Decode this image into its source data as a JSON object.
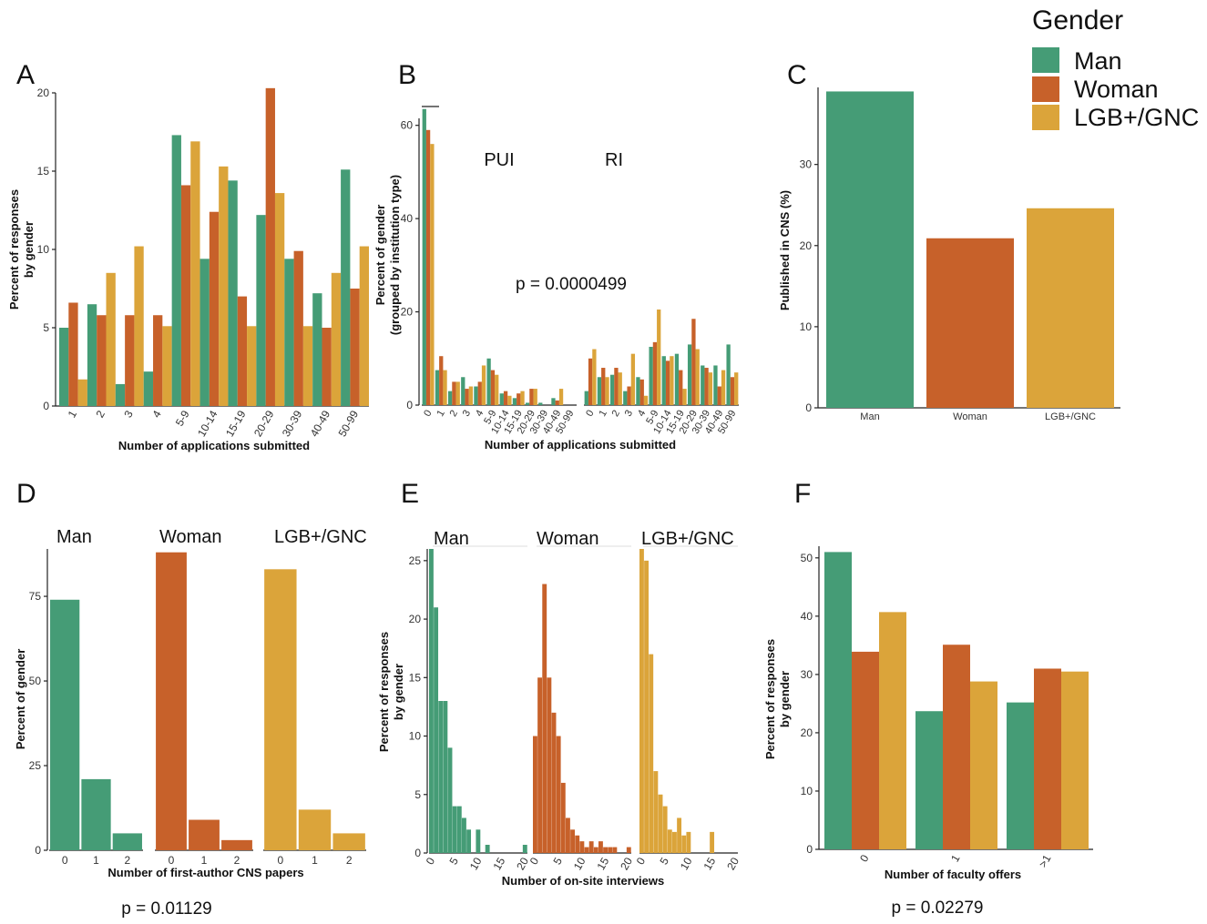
{
  "colors": {
    "man": "#459c76",
    "woman": "#c7612a",
    "lgb": "#dba43a"
  },
  "legend": {
    "title": "Gender",
    "entries": [
      {
        "label": "Man",
        "color": "#459c76"
      },
      {
        "label": "Woman",
        "color": "#c7612a"
      },
      {
        "label": "LGB+/GNC",
        "color": "#dba43a"
      }
    ]
  },
  "chart_data": [
    {
      "panel": "A",
      "type": "bar",
      "xlabel": "Number of applications submitted",
      "ylabel": [
        "Percent of responses",
        "by gender"
      ],
      "ylim": [
        0,
        20.5
      ],
      "yticks": [
        0,
        5,
        10,
        15,
        20
      ],
      "categories": [
        "1",
        "2",
        "3",
        "4",
        "5-9",
        "10-14",
        "15-19",
        "20-29",
        "30-39",
        "40-49",
        "50-99"
      ],
      "series": [
        {
          "name": "Man",
          "values": [
            5.0,
            6.5,
            1.4,
            2.2,
            17.3,
            9.4,
            14.4,
            12.2,
            9.4,
            7.2,
            15.1
          ]
        },
        {
          "name": "Woman",
          "values": [
            6.6,
            5.8,
            5.8,
            5.8,
            14.1,
            12.4,
            7.0,
            20.3,
            9.9,
            5.0,
            7.5
          ]
        },
        {
          "name": "LGB+/GNC",
          "values": [
            1.7,
            8.5,
            10.2,
            5.1,
            16.9,
            15.3,
            5.1,
            13.6,
            5.1,
            8.5,
            10.2
          ]
        }
      ]
    },
    {
      "panel": "B",
      "type": "bar",
      "xlabel": "Number of applications submitted",
      "ylabel": [
        "Percent of gender",
        "(grouped by institution type)"
      ],
      "ylim": [
        0,
        65
      ],
      "yticks": [
        0,
        20,
        40,
        60
      ],
      "annotation": "p = 0.0000499",
      "groups": [
        {
          "name": "PUI",
          "categories": [
            "0",
            "1",
            "2",
            "3",
            "4",
            "5-9",
            "10-14",
            "15-19",
            "20-29",
            "30-39",
            "40-49",
            "50-99"
          ],
          "series": [
            {
              "name": "Man",
              "values": [
                63.5,
                7.5,
                3.0,
                6.0,
                4.0,
                10.0,
                2.5,
                1.5,
                0.5,
                0.5,
                1.5,
                0.0
              ]
            },
            {
              "name": "Woman",
              "values": [
                59.0,
                10.5,
                5.0,
                3.5,
                5.0,
                7.5,
                3.0,
                2.5,
                3.5,
                0.0,
                1.0,
                0.0
              ]
            },
            {
              "name": "LGB+/GNC",
              "values": [
                56.0,
                7.5,
                5.0,
                4.0,
                8.5,
                6.5,
                2.0,
                3.0,
                3.5,
                0.0,
                3.5,
                0.0
              ]
            }
          ]
        },
        {
          "name": "RI",
          "categories": [
            "0",
            "1",
            "2",
            "3",
            "4",
            "5-9",
            "10-14",
            "15-19",
            "20-29",
            "30-39",
            "40-49",
            "50-99"
          ],
          "series": [
            {
              "name": "Man",
              "values": [
                3.0,
                6.0,
                6.5,
                3.0,
                6.0,
                12.5,
                10.5,
                11.0,
                13.0,
                8.5,
                8.5,
                13.0
              ]
            },
            {
              "name": "Woman",
              "values": [
                10.0,
                8.0,
                8.0,
                4.0,
                5.5,
                13.5,
                9.5,
                7.5,
                18.5,
                8.0,
                4.0,
                6.0
              ]
            },
            {
              "name": "LGB+/GNC",
              "values": [
                12.0,
                6.0,
                7.0,
                11.0,
                2.0,
                20.5,
                10.5,
                3.5,
                12.0,
                7.0,
                7.5,
                7.0
              ]
            }
          ]
        }
      ]
    },
    {
      "panel": "C",
      "type": "bar",
      "xlabel": "",
      "ylabel": "Published in CNS (%)",
      "ylim": [
        0,
        39
      ],
      "yticks": [
        0,
        10,
        20,
        30
      ],
      "categories": [
        "Man",
        "Woman",
        "LGB+/GNC"
      ],
      "values": [
        39.0,
        20.9,
        24.6
      ]
    },
    {
      "panel": "D",
      "type": "bar",
      "xlabel": "Number of first-author CNS papers",
      "ylabel": "Percent of gender",
      "ylim": [
        0,
        90
      ],
      "yticks": [
        0,
        25,
        50,
        75
      ],
      "annotation": "p = 0.01129",
      "facets": [
        {
          "name": "Man",
          "categories": [
            "0",
            "1",
            "2"
          ],
          "values": [
            74,
            21,
            5
          ]
        },
        {
          "name": "Woman",
          "categories": [
            "0",
            "1",
            "2"
          ],
          "values": [
            88,
            9,
            3
          ]
        },
        {
          "name": "LGB+/GNC",
          "categories": [
            "0",
            "1",
            "2"
          ],
          "values": [
            83,
            12,
            5
          ]
        }
      ]
    },
    {
      "panel": "E",
      "type": "bar",
      "xlabel": "Number of on-site interviews",
      "ylabel": [
        "Percent of responses",
        "by gender"
      ],
      "ylim": [
        0,
        26
      ],
      "yticks": [
        0,
        5,
        10,
        15,
        20,
        25
      ],
      "xticks": [
        0,
        5,
        10,
        15,
        20
      ],
      "facets": [
        {
          "name": "Man",
          "x": [
            0,
            1,
            2,
            3,
            4,
            5,
            6,
            7,
            8,
            9,
            10,
            11,
            12,
            13,
            14,
            15,
            16,
            17,
            18,
            19,
            20
          ],
          "values": [
            26,
            21,
            13,
            13,
            9,
            4,
            4,
            3,
            2,
            0,
            2,
            0,
            0.7,
            0,
            0,
            0,
            0,
            0,
            0,
            0,
            0.7
          ]
        },
        {
          "name": "Woman",
          "x": [
            0,
            1,
            2,
            3,
            4,
            5,
            6,
            7,
            8,
            9,
            10,
            11,
            12,
            13,
            14,
            15,
            16,
            17,
            18,
            19,
            20
          ],
          "values": [
            10,
            15,
            23,
            15,
            12,
            10,
            6,
            3,
            2,
            1.5,
            1,
            0.5,
            1,
            0.5,
            1,
            0.5,
            0.5,
            0.5,
            0,
            0,
            0.5
          ]
        },
        {
          "name": "LGB+/GNC",
          "x": [
            0,
            1,
            2,
            3,
            4,
            5,
            6,
            7,
            8,
            9,
            10,
            11,
            12,
            13,
            14,
            15,
            16,
            17,
            18,
            19,
            20
          ],
          "values": [
            26,
            25,
            17,
            7,
            5,
            4,
            2,
            1.8,
            3,
            1.5,
            1.8,
            0,
            0,
            0,
            0,
            1.8,
            0,
            0,
            0,
            0,
            0
          ]
        }
      ]
    },
    {
      "panel": "F",
      "type": "bar",
      "xlabel": "Number of faculty offers",
      "ylabel": [
        "Percent of responses",
        "by gender"
      ],
      "ylim": [
        0,
        52
      ],
      "yticks": [
        0,
        10,
        20,
        30,
        40,
        50
      ],
      "annotation": "p = 0.02279",
      "categories": [
        "0",
        "1",
        ">1"
      ],
      "series": [
        {
          "name": "Man",
          "values": [
            51.0,
            23.7,
            25.2
          ]
        },
        {
          "name": "Woman",
          "values": [
            33.9,
            35.1,
            31.0
          ]
        },
        {
          "name": "LGB+/GNC",
          "values": [
            40.7,
            28.8,
            30.5
          ]
        }
      ]
    }
  ]
}
